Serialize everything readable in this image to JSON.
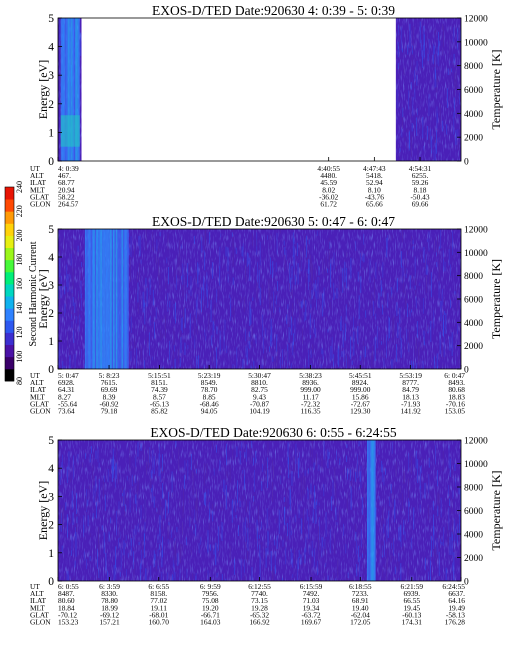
{
  "colorbar": {
    "label": "Second Harmonic Current",
    "ticks": [
      "240",
      "220",
      "200",
      "180",
      "160",
      "140",
      "120",
      "100",
      "80"
    ],
    "colors": [
      "#000000",
      "#3a006a",
      "#4a12a6",
      "#3c2fd0",
      "#2e58f0",
      "#2f82ff",
      "#10b2ee",
      "#00d7c0",
      "#00ef7a",
      "#46f93a",
      "#9bf61a",
      "#e6ef12",
      "#ffd20a",
      "#ff9a06",
      "#ff4a04",
      "#e81404"
    ]
  },
  "chart_data": [
    {
      "type": "heatmap",
      "title": "EXOS-D/TED   Date:920630  4: 0:39 - 5: 0:39",
      "ylabel": "Energy [eV]",
      "y2label": "Temperature [K]",
      "ylim": [
        0,
        5
      ],
      "y2lim": [
        0,
        12000
      ],
      "yticks": [
        "0",
        "1",
        "2",
        "3",
        "4",
        "5"
      ],
      "y2ticks": [
        "0",
        "2000",
        "4000",
        "6000",
        "8000",
        "10000",
        "12000"
      ],
      "xlim": [
        0,
        60
      ],
      "data_gaps": [
        [
          3.5,
          50.3
        ]
      ],
      "strong_bands": [
        [
          0.4,
          3.2
        ]
      ],
      "table_labels": [
        "UT",
        "ALT",
        "ILAT",
        "MLT",
        "GLAT",
        "GLON"
      ],
      "columns": [
        {
          "x": 0,
          "values": [
            "4: 0:39",
            "467.",
            "68.77",
            "20.94",
            "58.22",
            "264.57"
          ]
        },
        {
          "x": 40.3,
          "values": [
            "4:40:55",
            "4480.",
            "45.59",
            "8.02",
            "-36.02",
            "61.72"
          ]
        },
        {
          "x": 47.1,
          "values": [
            "4:47:43",
            "5418.",
            "52.94",
            "8.10",
            "-43.76",
            "65.66"
          ]
        },
        {
          "x": 53.9,
          "values": [
            "4:54:31",
            "6255.",
            "59.26",
            "8.18",
            "-50.43",
            "69.66"
          ]
        }
      ]
    },
    {
      "type": "heatmap",
      "title": "EXOS-D/TED   Date:920630  5: 0:47 - 6: 0:47",
      "ylabel": "Energy [eV]",
      "y2label": "Temperature [K]",
      "ylim": [
        0,
        5
      ],
      "y2lim": [
        0,
        12000
      ],
      "yticks": [
        "0",
        "1",
        "2",
        "3",
        "4",
        "5"
      ],
      "y2ticks": [
        "0",
        "2000",
        "4000",
        "6000",
        "8000",
        "10000",
        "12000"
      ],
      "xlim": [
        0,
        60
      ],
      "data_gaps": [],
      "strong_bands": [
        [
          4.0,
          10.5
        ]
      ],
      "table_labels": [
        "UT",
        "ALT",
        "ILAT",
        "MLT",
        "GLAT",
        "GLON"
      ],
      "columns": [
        {
          "x": 0,
          "values": [
            "5: 0:47",
            "6928.",
            "64.31",
            "8.27",
            "-55.64",
            "73.64"
          ]
        },
        {
          "x": 7.6,
          "values": [
            "5: 8:23",
            "7615.",
            "69.69",
            "8.39",
            "-60.92",
            "79.18"
          ]
        },
        {
          "x": 15.1,
          "values": [
            "5:15:51",
            "8151.",
            "74.39",
            "8.57",
            "-65.13",
            "85.82"
          ]
        },
        {
          "x": 22.5,
          "values": [
            "5:23:19",
            "8549.",
            "78.70",
            "8.85",
            "-68.46",
            "94.05"
          ]
        },
        {
          "x": 30.0,
          "values": [
            "5:30:47",
            "8810.",
            "82.75",
            "9.43",
            "-70.87",
            "104.19"
          ]
        },
        {
          "x": 37.6,
          "values": [
            "5:38:23",
            "8936.",
            "999.00",
            "11.17",
            "-72.32",
            "116.35"
          ]
        },
        {
          "x": 45.0,
          "values": [
            "5:45:51",
            "8924.",
            "999.00",
            "15.86",
            "-72.67",
            "129.30"
          ]
        },
        {
          "x": 52.5,
          "values": [
            "5:53:19",
            "8777.",
            "84.79",
            "18.13",
            "-71.93",
            "141.92"
          ]
        },
        {
          "x": 60.0,
          "values": [
            "6: 0:47",
            "8493.",
            "80.68",
            "18.83",
            "-70.16",
            "153.05"
          ]
        }
      ]
    },
    {
      "type": "heatmap",
      "title": "EXOS-D/TED   Date:920630  6: 0:55 - 6:24:55",
      "ylabel": "Energy [eV]",
      "y2label": "Temperature [K]",
      "ylim": [
        0,
        5
      ],
      "y2lim": [
        0,
        12000
      ],
      "yticks": [
        "0",
        "1",
        "2",
        "3",
        "4",
        "5"
      ],
      "y2ticks": [
        "0",
        "2000",
        "4000",
        "6000",
        "8000",
        "10000",
        "12000"
      ],
      "xlim": [
        0,
        24
      ],
      "data_gaps": [],
      "strong_bands": [
        [
          18.4,
          18.9
        ]
      ],
      "table_labels": [
        "UT",
        "ALT",
        "ILAT",
        "MLT",
        "GLAT",
        "GLON"
      ],
      "columns": [
        {
          "x": 0,
          "values": [
            "6: 0:55",
            "8487.",
            "80.60",
            "18.84",
            "-70.12",
            "153.23"
          ]
        },
        {
          "x": 3.07,
          "values": [
            "6: 3:59",
            "8330.",
            "78.80",
            "18.99",
            "-69.12",
            "157.21"
          ]
        },
        {
          "x": 6.0,
          "values": [
            "6: 6:55",
            "8158.",
            "77.02",
            "19.11",
            "-68.01",
            "160.70"
          ]
        },
        {
          "x": 9.07,
          "values": [
            "6: 9:59",
            "7956.",
            "75.08",
            "19.20",
            "-66.71",
            "164.03"
          ]
        },
        {
          "x": 12.0,
          "values": [
            "6:12:55",
            "7740.",
            "73.15",
            "19.28",
            "-65.32",
            "166.92"
          ]
        },
        {
          "x": 15.07,
          "values": [
            "6:15:59",
            "7492.",
            "71.03",
            "19.34",
            "-63.72",
            "169.67"
          ]
        },
        {
          "x": 18.0,
          "values": [
            "6:18:55",
            "7233.",
            "68.91",
            "19.40",
            "-62.04",
            "172.05"
          ]
        },
        {
          "x": 21.07,
          "values": [
            "6:21:59",
            "6939.",
            "66.55",
            "19.45",
            "-60.13",
            "174.31"
          ]
        },
        {
          "x": 24.0,
          "values": [
            "6:24:55",
            "6637.",
            "64.16",
            "19.49",
            "-58.13",
            "176.28"
          ]
        }
      ]
    }
  ]
}
